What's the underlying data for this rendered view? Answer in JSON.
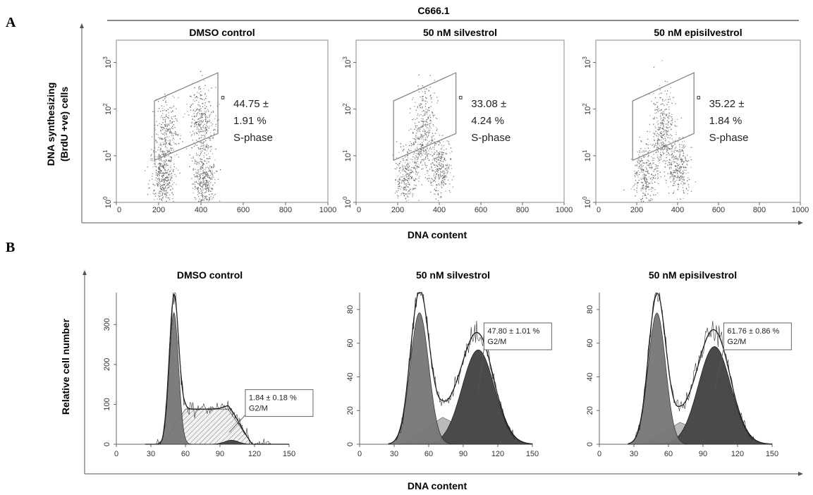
{
  "figure": {
    "panel_a_label": "A",
    "panel_b_label": "B",
    "cell_line": "C666.1",
    "panel_a_ylabel_line1": "DNA synthesizing",
    "panel_a_ylabel_line2": "(BrdU +ve) cells",
    "panel_a_xlabel": "DNA content",
    "panel_b_ylabel": "Relative cell number",
    "panel_b_xlabel": "DNA content"
  },
  "chart_data": [
    {
      "type": "scatter",
      "panel": "A",
      "title": "DMSO control",
      "xlim": [
        0,
        1000
      ],
      "xticks": [
        "0",
        "200",
        "400",
        "600",
        "800",
        "1000"
      ],
      "ylim_log": [
        1,
        3000
      ],
      "yticks": [
        "0",
        "1",
        "2",
        "3"
      ],
      "y_scale": "log",
      "annotation_lines": [
        "44.75 ±",
        "1.91 %",
        "S-phase"
      ],
      "annotation_marker": "¤",
      "gate": [
        [
          180,
          8
        ],
        [
          480,
          30
        ],
        [
          480,
          600
        ],
        [
          180,
          150
        ]
      ],
      "clusters": [
        {
          "x": 220,
          "y_log": 0.5,
          "n": 420
        },
        {
          "x": 410,
          "y_log": 0.5,
          "n": 420
        },
        {
          "x": 240,
          "y_log": 1.5,
          "n": 260
        },
        {
          "x": 400,
          "y_log": 1.8,
          "n": 320
        }
      ]
    },
    {
      "type": "scatter",
      "panel": "A",
      "title": "50 nM silvestrol",
      "xlim": [
        0,
        1000
      ],
      "xticks": [
        "0",
        "200",
        "400",
        "600",
        "800",
        "1000"
      ],
      "ylim_log": [
        1,
        3000
      ],
      "yticks": [
        "0",
        "1",
        "2",
        "3"
      ],
      "y_scale": "log",
      "annotation_lines": [
        "33.08 ±",
        "4.24 %",
        "S-phase"
      ],
      "annotation_marker": "¤",
      "gate": [
        [
          180,
          8
        ],
        [
          480,
          30
        ],
        [
          480,
          600
        ],
        [
          180,
          150
        ]
      ],
      "clusters": [
        {
          "x": 240,
          "y_log": 0.55,
          "n": 300
        },
        {
          "x": 400,
          "y_log": 0.75,
          "n": 300
        },
        {
          "x": 320,
          "y_log": 1.3,
          "n": 240
        },
        {
          "x": 330,
          "y_log": 1.9,
          "n": 120
        }
      ]
    },
    {
      "type": "scatter",
      "panel": "A",
      "title": "50 nM episilvestrol",
      "xlim": [
        0,
        1000
      ],
      "xticks": [
        "0",
        "200",
        "400",
        "600",
        "800",
        "1000"
      ],
      "ylim_log": [
        1,
        3000
      ],
      "yticks": [
        "0",
        "1",
        "2",
        "3"
      ],
      "y_scale": "log",
      "annotation_lines": [
        "35.22 ±",
        "1.84 %",
        "S-phase"
      ],
      "annotation_marker": "¤",
      "gate": [
        [
          180,
          8
        ],
        [
          480,
          30
        ],
        [
          480,
          600
        ],
        [
          180,
          150
        ]
      ],
      "clusters": [
        {
          "x": 240,
          "y_log": 0.55,
          "n": 300
        },
        {
          "x": 400,
          "y_log": 0.75,
          "n": 300
        },
        {
          "x": 320,
          "y_log": 1.35,
          "n": 240
        },
        {
          "x": 330,
          "y_log": 1.9,
          "n": 120
        }
      ]
    },
    {
      "type": "area",
      "panel": "B",
      "title": "DMSO control",
      "xlim": [
        0,
        150
      ],
      "xticks": [
        "0",
        "30",
        "60",
        "90",
        "120",
        "150"
      ],
      "ylim": [
        0,
        380
      ],
      "yticks": [
        0,
        100,
        200,
        300
      ],
      "annotation_lines": [
        "1.84 ± 0.18 %",
        "G2/M"
      ],
      "g1_peak": {
        "mean": 50,
        "sd": 4,
        "height": 330
      },
      "s_phase": {
        "start": 40,
        "plateau_start": 60,
        "plateau_end": 97,
        "end": 118,
        "height": 88
      },
      "g2_peak": {
        "mean": 100,
        "sd": 6,
        "height": 10
      },
      "envelope_peak": 375
    },
    {
      "type": "area",
      "panel": "B",
      "title": "50 nM silvestrol",
      "xlim": [
        0,
        150
      ],
      "xticks": [
        "0",
        "30",
        "60",
        "90",
        "120",
        "150"
      ],
      "ylim": [
        0,
        90
      ],
      "yticks": [
        0,
        20,
        40,
        60,
        80
      ],
      "annotation_lines": [
        "47.80 ± 1.01 %",
        "G2/M"
      ],
      "g1_peak": {
        "mean": 52,
        "sd": 8,
        "height": 78
      },
      "s_phase": {
        "start": 38,
        "peak_x": 72,
        "end": 118,
        "height": 16
      },
      "g2_peak": {
        "mean": 103,
        "sd": 14,
        "height": 56
      },
      "envelope_peak": 87
    },
    {
      "type": "area",
      "panel": "B",
      "title": "50 nM episilvestrol",
      "xlim": [
        0,
        150
      ],
      "xticks": [
        "0",
        "30",
        "60",
        "90",
        "120",
        "150"
      ],
      "ylim": [
        0,
        90
      ],
      "yticks": [
        0,
        20,
        40,
        60,
        80
      ],
      "annotation_lines": [
        "61.76 ± 0.86 %",
        "G2/M"
      ],
      "g1_peak": {
        "mean": 50,
        "sd": 7.5,
        "height": 78
      },
      "s_phase": {
        "start": 38,
        "peak_x": 70,
        "end": 118,
        "height": 13
      },
      "g2_peak": {
        "mean": 100,
        "sd": 14,
        "height": 58
      },
      "envelope_peak": 85
    }
  ]
}
